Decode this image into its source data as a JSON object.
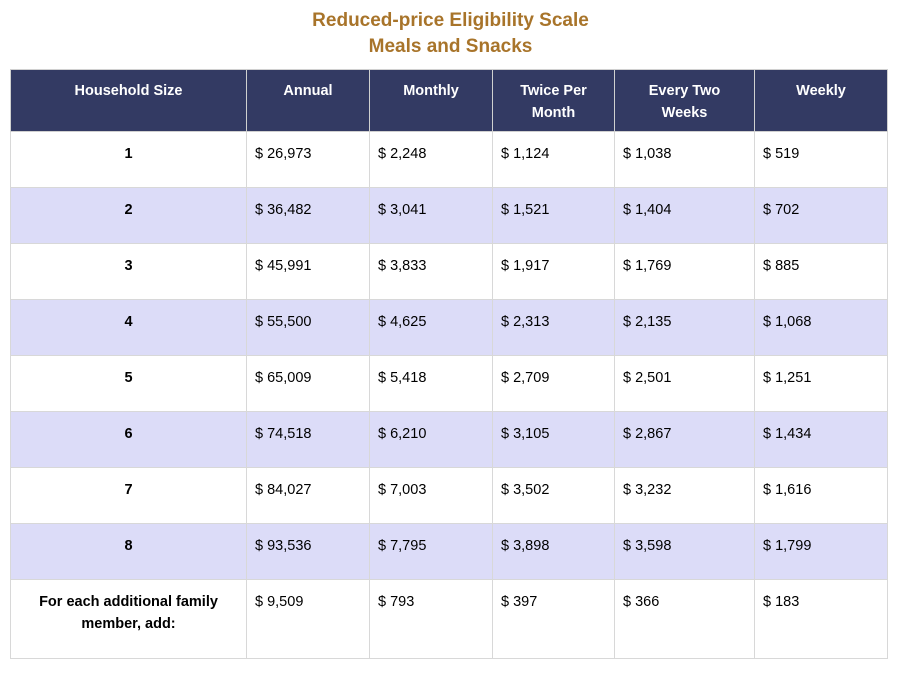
{
  "title": {
    "line1": "Reduced-price Eligibility Scale",
    "line2": "Meals and Snacks"
  },
  "colors": {
    "title": "#a8742a",
    "header_bg": "#333a63",
    "header_text": "#ffffff",
    "row_alt_bg": "#dcdcf8",
    "row_bg": "#ffffff"
  },
  "table": {
    "headers": [
      "Household Size",
      "Annual",
      "Monthly",
      "Twice Per Month",
      "Every Two Weeks",
      "Weekly"
    ],
    "rows": [
      [
        "1",
        "$ 26,973",
        "$ 2,248",
        "$ 1,124",
        "$ 1,038",
        "$ 519"
      ],
      [
        "2",
        "$ 36,482",
        "$ 3,041",
        "$ 1,521",
        "$ 1,404",
        "$ 702"
      ],
      [
        "3",
        "$ 45,991",
        "$ 3,833",
        "$ 1,917",
        "$ 1,769",
        "$ 885"
      ],
      [
        "4",
        "$ 55,500",
        "$ 4,625",
        "$ 2,313",
        "$ 2,135",
        "$ 1,068"
      ],
      [
        "5",
        "$ 65,009",
        "$ 5,418",
        "$ 2,709",
        "$ 2,501",
        "$ 1,251"
      ],
      [
        "6",
        "$ 74,518",
        "$ 6,210",
        "$ 3,105",
        "$ 2,867",
        "$ 1,434"
      ],
      [
        "7",
        "$ 84,027",
        "$ 7,003",
        "$ 3,502",
        "$ 3,232",
        "$ 1,616"
      ],
      [
        "8",
        "$ 93,536",
        "$ 7,795",
        "$ 3,898",
        "$ 3,598",
        "$ 1,799"
      ],
      [
        "For each additional family member, add:",
        "$ 9,509",
        "$ 793",
        "$ 397",
        "$ 366",
        "$ 183"
      ]
    ]
  }
}
